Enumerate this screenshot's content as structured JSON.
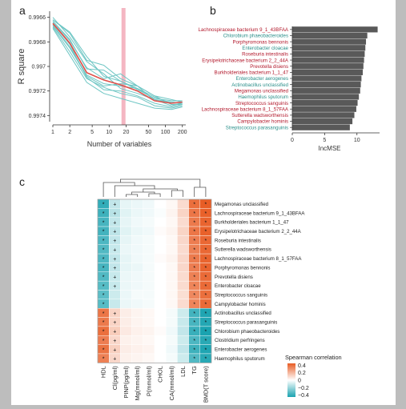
{
  "panels": {
    "a": "a",
    "b": "b",
    "c": "c"
  },
  "chart_data": [
    {
      "panel": "a",
      "type": "line",
      "xlabel": "Number of variables",
      "ylabel": "R square",
      "x_scale": "log",
      "x_ticks": [
        1,
        2,
        5,
        10,
        20,
        50,
        100,
        200
      ],
      "y_ticks": [
        0.9966,
        0.9968,
        0.997,
        0.9972,
        0.9974
      ],
      "y_reversed": true,
      "ylim": [
        0.99655,
        0.99745
      ],
      "xlim": [
        1,
        230
      ],
      "highlight_x": 18,
      "highlight_color": "#f4b6c2",
      "mean_color": "#e0504a",
      "replicate_color": "#6fc6c4",
      "x": [
        1,
        2,
        4,
        8,
        16,
        32,
        64,
        128,
        200
      ],
      "mean": [
        0.99665,
        0.99681,
        0.99705,
        0.99711,
        0.99715,
        0.9972,
        0.99728,
        0.9973,
        0.99729
      ],
      "replicates": [
        [
          0.99662,
          0.99672,
          0.99692,
          0.99708,
          0.99712,
          0.99718,
          0.99725,
          0.9973,
          0.9973
        ],
        [
          0.99668,
          0.99688,
          0.9971,
          0.99717,
          0.99722,
          0.99725,
          0.99732,
          0.99734,
          0.99732
        ],
        [
          0.99663,
          0.99678,
          0.99702,
          0.99703,
          0.99712,
          0.99719,
          0.99726,
          0.99728,
          0.99728
        ],
        [
          0.99667,
          0.99685,
          0.99708,
          0.99716,
          0.99714,
          0.99716,
          0.99728,
          0.99729,
          0.9973
        ],
        [
          0.9966,
          0.99676,
          0.99696,
          0.99706,
          0.99718,
          0.99722,
          0.99727,
          0.99732,
          0.9973
        ],
        [
          0.99669,
          0.99691,
          0.99713,
          0.99722,
          0.99726,
          0.9973,
          0.99734,
          0.99735,
          0.99733
        ],
        [
          0.99664,
          0.99679,
          0.99701,
          0.9971,
          0.99706,
          0.99716,
          0.99724,
          0.99727,
          0.99729
        ],
        [
          0.99666,
          0.99684,
          0.99707,
          0.99714,
          0.99716,
          0.99718,
          0.99727,
          0.99729,
          0.9973
        ],
        [
          0.99662,
          0.99673,
          0.99695,
          0.99699,
          0.9971,
          0.99716,
          0.99724,
          0.99731,
          0.99731
        ],
        [
          0.99665,
          0.99682,
          0.99709,
          0.99719,
          0.9972,
          0.99724,
          0.9973,
          0.99733,
          0.99731
        ]
      ]
    },
    {
      "panel": "b",
      "type": "bar",
      "orientation": "horizontal",
      "xlabel": "IncMSE",
      "x_ticks": [
        0,
        5,
        10
      ],
      "xlim": [
        0,
        13.5
      ],
      "bar_color": "#595959",
      "categories": [
        {
          "label": "Lachnospiraceae bacterium 9_1_43BFAA",
          "value": 13.2,
          "color": "#b2182b"
        },
        {
          "label": "Chlorobium phaeobacteroides",
          "value": 11.6,
          "color": "#2a8f8a"
        },
        {
          "label": "Porphyromonas bennonis",
          "value": 11.4,
          "color": "#b2182b"
        },
        {
          "label": "Enterobacter cloacae",
          "value": 11.3,
          "color": "#2a8f8a"
        },
        {
          "label": "Roseburia intestinalis",
          "value": 11.2,
          "color": "#b2182b"
        },
        {
          "label": "Erysipelotrichaceae bacterium 2_2_44A",
          "value": 11.1,
          "color": "#b2182b"
        },
        {
          "label": "Prevotella disiens",
          "value": 11.0,
          "color": "#b2182b"
        },
        {
          "label": "Burkholderiales bacterium 1_1_47",
          "value": 10.9,
          "color": "#b2182b"
        },
        {
          "label": "Enterobacter aerogenes",
          "value": 10.7,
          "color": "#2a8f8a"
        },
        {
          "label": "Actinobacillus unclassified",
          "value": 10.6,
          "color": "#2a8f8a"
        },
        {
          "label": "Megamonas unclassified",
          "value": 10.5,
          "color": "#b2182b"
        },
        {
          "label": "Haemophilus sputorum",
          "value": 10.3,
          "color": "#2a8f8a"
        },
        {
          "label": "Streptococcus sanguinis",
          "value": 10.1,
          "color": "#b2182b"
        },
        {
          "label": "Lachnospiraceae bacterium 8_1_57FAA",
          "value": 9.9,
          "color": "#b2182b"
        },
        {
          "label": "Sutterella wadsworthensis",
          "value": 9.6,
          "color": "#b2182b"
        },
        {
          "label": "Campylobacter hominis",
          "value": 9.3,
          "color": "#b2182b"
        },
        {
          "label": "Streptococcus parasanguinis",
          "value": 8.9,
          "color": "#2a8f8a"
        }
      ]
    },
    {
      "panel": "c",
      "type": "heatmap",
      "columns": [
        "HDL",
        "Cl(pg/ml)",
        "PINP(pg/ml)",
        "Mg(mmol/ml)",
        "P(mmol/ml)",
        "CHOL",
        "CA(mmol/ml)",
        "LDL",
        "TG",
        "BMD(T score)"
      ],
      "rows": [
        "Megamonas unclassified",
        "Lachnospiraceae bacterium 9_1_43BFAA",
        "Burkholderiales bacterium 1_1_47",
        "Erysipelotrichaceae bacterium 2_2_44A",
        "Roseburia intestinalis",
        "Sutterella wadsworthensis",
        "Lachnospiraceae bacterium 8_1_57FAA",
        "Porphyromonas bennonis",
        "Prevotella disiens",
        "Enterobacter cloacae",
        "Streptococcus sanguinis",
        "Campylobacter hominis",
        "Actinobacillus unclassified",
        "Streptococcus parasanguinis",
        "Chlorobium phaeobacteroides",
        "Clostridium perfringens",
        "Enterobacter aerogenes",
        "Haemophilus sputorum"
      ],
      "values": [
        [
          -0.4,
          -0.12,
          -0.05,
          -0.04,
          -0.03,
          0.0,
          0.02,
          0.1,
          0.4,
          0.45
        ],
        [
          -0.38,
          -0.14,
          -0.06,
          -0.04,
          -0.03,
          -0.01,
          0.03,
          0.12,
          0.38,
          0.44
        ],
        [
          -0.36,
          -0.12,
          -0.05,
          -0.03,
          -0.02,
          0.0,
          0.02,
          0.1,
          0.37,
          0.43
        ],
        [
          -0.37,
          -0.13,
          -0.06,
          -0.04,
          -0.03,
          0.01,
          0.03,
          0.12,
          0.38,
          0.44
        ],
        [
          -0.35,
          -0.12,
          -0.05,
          -0.03,
          -0.02,
          0.0,
          0.02,
          0.11,
          0.36,
          0.42
        ],
        [
          -0.34,
          -0.11,
          -0.04,
          -0.03,
          -0.02,
          0.0,
          0.02,
          0.1,
          0.35,
          0.42
        ],
        [
          -0.35,
          -0.12,
          -0.05,
          -0.03,
          -0.02,
          0.01,
          0.03,
          0.11,
          0.37,
          0.43
        ],
        [
          -0.36,
          -0.12,
          -0.05,
          -0.04,
          -0.02,
          0.0,
          0.02,
          0.11,
          0.36,
          0.43
        ],
        [
          -0.34,
          -0.11,
          -0.04,
          -0.03,
          -0.02,
          0.0,
          0.02,
          0.1,
          0.35,
          0.41
        ],
        [
          -0.33,
          -0.11,
          -0.04,
          -0.03,
          -0.02,
          0.0,
          0.02,
          0.1,
          0.34,
          0.41
        ],
        [
          -0.32,
          -0.1,
          -0.04,
          -0.02,
          -0.02,
          0.0,
          0.02,
          0.09,
          0.33,
          0.4
        ],
        [
          -0.33,
          -0.11,
          -0.04,
          -0.03,
          -0.02,
          0.0,
          0.02,
          0.1,
          0.34,
          0.41
        ],
        [
          0.38,
          0.12,
          0.05,
          0.03,
          0.02,
          0.0,
          -0.02,
          -0.1,
          -0.37,
          -0.44
        ],
        [
          0.37,
          0.12,
          0.05,
          0.03,
          0.02,
          0.0,
          -0.02,
          -0.11,
          -0.36,
          -0.43
        ],
        [
          0.4,
          0.14,
          0.06,
          0.04,
          0.03,
          0.01,
          -0.03,
          -0.12,
          -0.39,
          -0.45
        ],
        [
          0.36,
          0.11,
          0.04,
          0.03,
          0.02,
          0.0,
          -0.02,
          -0.1,
          -0.35,
          -0.42
        ],
        [
          0.39,
          0.13,
          0.05,
          0.04,
          0.03,
          0.0,
          -0.03,
          -0.12,
          -0.38,
          -0.44
        ],
        [
          0.35,
          0.11,
          0.04,
          0.03,
          0.02,
          0.0,
          -0.02,
          -0.1,
          -0.34,
          -0.42
        ]
      ],
      "marks": [
        [
          "*",
          "+",
          "",
          "",
          "",
          "",
          "",
          "",
          "*",
          "*"
        ],
        [
          "*",
          "+",
          "",
          "",
          "",
          "",
          "",
          "",
          "*",
          "*"
        ],
        [
          "*",
          "+",
          "",
          "",
          "",
          "",
          "",
          "",
          "*",
          "*"
        ],
        [
          "*",
          "+",
          "",
          "",
          "",
          "",
          "",
          "",
          "*",
          "*"
        ],
        [
          "*",
          "+",
          "",
          "",
          "",
          "",
          "",
          "",
          "*",
          "*"
        ],
        [
          "*",
          "+",
          "",
          "",
          "",
          "",
          "",
          "",
          "*",
          "*"
        ],
        [
          "*",
          "+",
          "",
          "",
          "",
          "",
          "",
          "",
          "*",
          "*"
        ],
        [
          "*",
          "+",
          "",
          "",
          "",
          "",
          "",
          "",
          "*",
          "*"
        ],
        [
          "*",
          "+",
          "",
          "",
          "",
          "",
          "",
          "",
          "*",
          "*"
        ],
        [
          "*",
          "+",
          "",
          "",
          "",
          "",
          "",
          "",
          "*",
          "*"
        ],
        [
          "*",
          "",
          "",
          "",
          "",
          "",
          "",
          "",
          "*",
          "*"
        ],
        [
          "*",
          "",
          "",
          "",
          "",
          "",
          "",
          "",
          "*",
          "*"
        ],
        [
          "*",
          "+",
          "",
          "",
          "",
          "",
          "",
          "",
          "*",
          "*"
        ],
        [
          "*",
          "+",
          "",
          "",
          "",
          "",
          "",
          "",
          "*",
          "*"
        ],
        [
          "*",
          "+",
          "",
          "",
          "",
          "",
          "",
          "",
          "*",
          "*"
        ],
        [
          "*",
          "+",
          "",
          "",
          "",
          "",
          "",
          "",
          "*",
          "*"
        ],
        [
          "*",
          "+",
          "",
          "",
          "",
          "",
          "",
          "",
          "*",
          "*"
        ],
        [
          "*",
          "+",
          "",
          "",
          "",
          "",
          "",
          "",
          "*",
          "*"
        ]
      ],
      "legend": {
        "title": "Spearman  correlation",
        "ticks": [
          0.4,
          0.2,
          0,
          -0.2,
          -0.4
        ],
        "tick_labels": [
          "0.4",
          "0.2",
          "0",
          "−0.2",
          "−0.4"
        ],
        "colors": {
          "positive": "#e85d25",
          "zero": "#ffffff",
          "negative": "#1aa3b0"
        }
      }
    }
  ]
}
